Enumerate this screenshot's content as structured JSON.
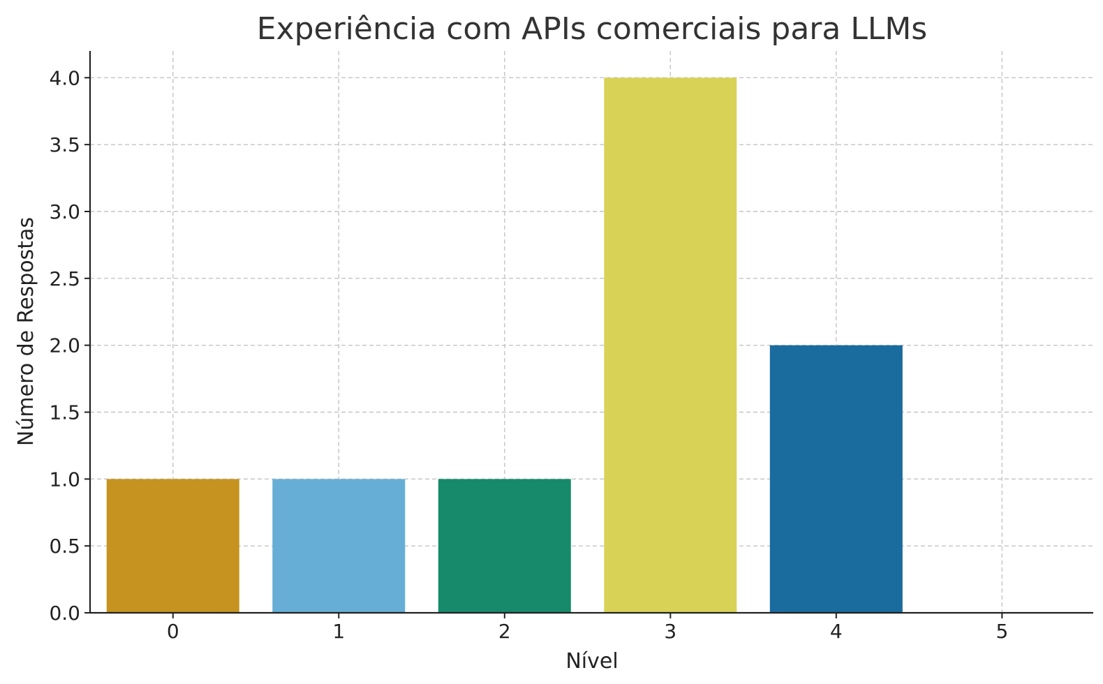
{
  "chart_data": {
    "type": "bar",
    "title": "Experiência com APIs comerciais para LLMs",
    "xlabel": "Nível",
    "ylabel": "Número de Respostas",
    "categories": [
      "0",
      "1",
      "2",
      "3",
      "4",
      "5"
    ],
    "values": [
      1,
      1,
      1,
      4,
      2,
      0
    ],
    "colors": [
      "#c69320",
      "#67aed6",
      "#168a6a",
      "#d8d257",
      "#1a6b9e",
      "#cc79a7"
    ],
    "ylim": [
      0,
      4.2
    ],
    "yticks": [
      "0.0",
      "0.5",
      "1.0",
      "1.5",
      "2.0",
      "2.5",
      "3.0",
      "3.5",
      "4.0"
    ],
    "grid": true,
    "legend": "none"
  }
}
